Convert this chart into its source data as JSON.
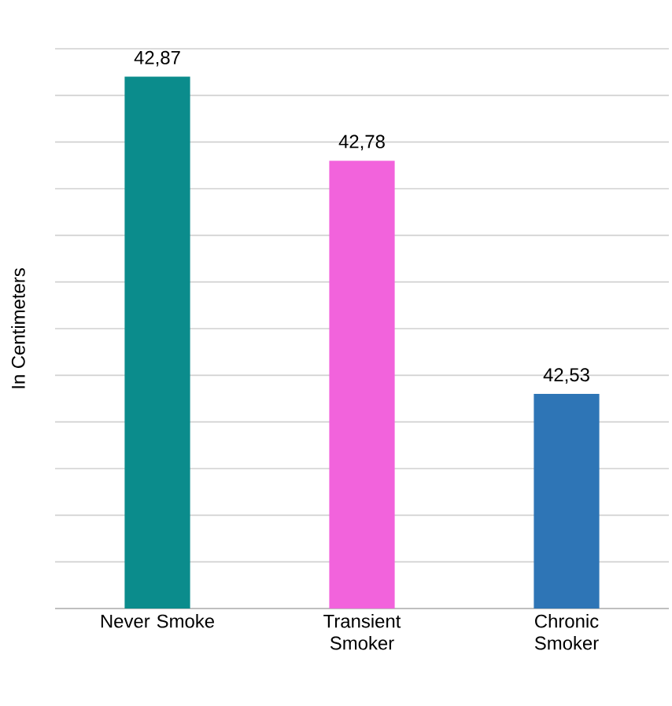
{
  "chart_data": {
    "type": "bar",
    "ylabel": "In Centimeters",
    "categories": [
      "Never Smoke",
      "Transient Smoker",
      "Chronic Smoker"
    ],
    "values": [
      42.87,
      42.78,
      42.53
    ],
    "colors": [
      "#0b8c8c",
      "#f263dc",
      "#2e75b6"
    ],
    "value_labels": [
      "42,87",
      "42,78",
      "42,53"
    ],
    "ylim": [
      42.3,
      42.9
    ],
    "tick_labels": "x",
    "grid": "y"
  }
}
